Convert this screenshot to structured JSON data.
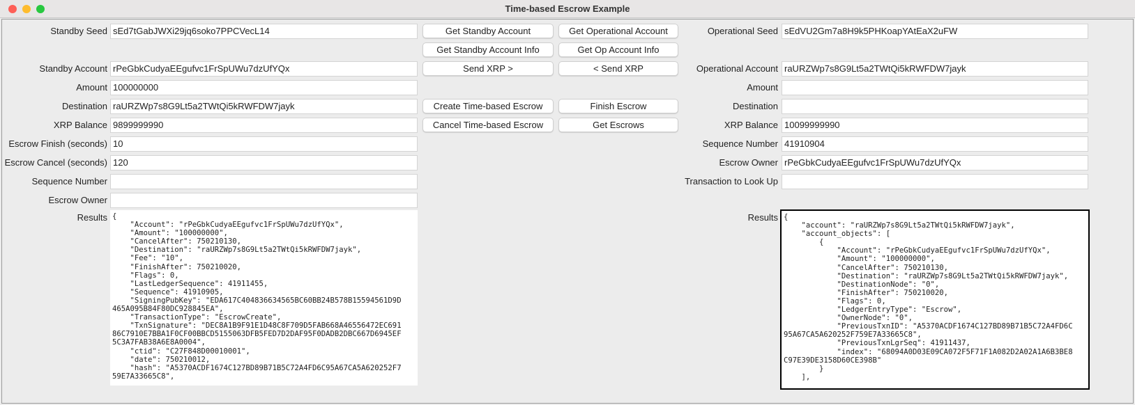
{
  "window": {
    "title": "Time-based Escrow Example"
  },
  "standby": {
    "fields": [
      {
        "label": "Standby Seed",
        "value": "sEd7tGabJWXi29jq6soko7PPCVecL14"
      },
      {
        "label": "Standby Account",
        "value": "rPeGbkCudyaEEgufvc1FrSpUWu7dzUfYQx"
      },
      {
        "label": "Amount",
        "value": "100000000"
      },
      {
        "label": "Destination",
        "value": "raURZWp7s8G9Lt5a2TWtQi5kRWFDW7jayk"
      },
      {
        "label": "XRP Balance",
        "value": "9899999990"
      },
      {
        "label": "Escrow Finish (seconds)",
        "value": "10"
      },
      {
        "label": "Escrow Cancel (seconds)",
        "value": "120"
      },
      {
        "label": "Sequence Number",
        "value": ""
      },
      {
        "label": "Escrow Owner",
        "value": ""
      }
    ],
    "results_label": "Results",
    "results": "{\n    \"Account\": \"rPeGbkCudyaEEgufvc1FrSpUWu7dzUfYQx\",\n    \"Amount\": \"100000000\",\n    \"CancelAfter\": 750210130,\n    \"Destination\": \"raURZWp7s8G9Lt5a2TWtQi5kRWFDW7jayk\",\n    \"Fee\": \"10\",\n    \"FinishAfter\": 750210020,\n    \"Flags\": 0,\n    \"LastLedgerSequence\": 41911455,\n    \"Sequence\": 41910905,\n    \"SigningPubKey\": \"EDA617C404836634565BC60BB24B578B15594561D9D\n465A095B84F80DC928845EA\",\n    \"TransactionType\": \"EscrowCreate\",\n    \"TxnSignature\": \"DEC8A1B9F91E1D48C8F709D5FAB668A46556472EC691\n86C7910E7BBA1F0CF00BBCD5155063DFB5FED7D2DAF95F0DADB2DBC667D6945EF\n5C3A7FAB38A6E8A0004\",\n    \"ctid\": \"C27F848D00010001\",\n    \"date\": 750210012,\n    \"hash\": \"A5370ACDF1674C127BD89B71B5C72A4FD6C95A67CA5A620252F7\n59E7A33665C8\","
  },
  "buttons": [
    [
      "Get Standby Account",
      "Get Operational Account"
    ],
    [
      "Get Standby Account Info",
      "Get Op Account Info"
    ],
    [
      "Send XRP >",
      "< Send XRP"
    ],
    [
      "Create Time-based Escrow",
      "Finish Escrow"
    ],
    [
      "Cancel Time-based Escrow",
      "Get Escrows"
    ]
  ],
  "operational": {
    "fields": [
      {
        "label": "Operational Seed",
        "value": "sEdVU2Gm7a8H9k5PHKoapYAtEaX2uFW"
      },
      {
        "label": "Operational Account",
        "value": "raURZWp7s8G9Lt5a2TWtQi5kRWFDW7jayk"
      },
      {
        "label": "Amount",
        "value": ""
      },
      {
        "label": "Destination",
        "value": ""
      },
      {
        "label": "XRP Balance",
        "value": "10099999990"
      },
      {
        "label": "Sequence Number",
        "value": "41910904"
      },
      {
        "label": "Escrow Owner",
        "value": "rPeGbkCudyaEEgufvc1FrSpUWu7dzUfYQx"
      },
      {
        "label": "Transaction to Look Up",
        "value": ""
      }
    ],
    "results_label": "Results",
    "results": "{\n    \"account\": \"raURZWp7s8G9Lt5a2TWtQi5kRWFDW7jayk\",\n    \"account_objects\": [\n        {\n            \"Account\": \"rPeGbkCudyaEEgufvc1FrSpUWu7dzUfYQx\",\n            \"Amount\": \"100000000\",\n            \"CancelAfter\": 750210130,\n            \"Destination\": \"raURZWp7s8G9Lt5a2TWtQi5kRWFDW7jayk\",\n            \"DestinationNode\": \"0\",\n            \"FinishAfter\": 750210020,\n            \"Flags\": 0,\n            \"LedgerEntryType\": \"Escrow\",\n            \"OwnerNode\": \"0\",\n            \"PreviousTxnID\": \"A5370ACDF1674C127BD89B71B5C72A4FD6C\n95A67CA5A620252F759E7A33665C8\",\n            \"PreviousTxnLgrSeq\": 41911437,\n            \"index\": \"68094A0D03E09CA072F5F71F1A082D2A02A1A6B3BE8\nC97E39DE3158D60CE398B\"\n        }\n    ],"
  },
  "colors": {
    "close": "#fe5f57",
    "minimize": "#febc2e",
    "zoom": "#28c840"
  }
}
